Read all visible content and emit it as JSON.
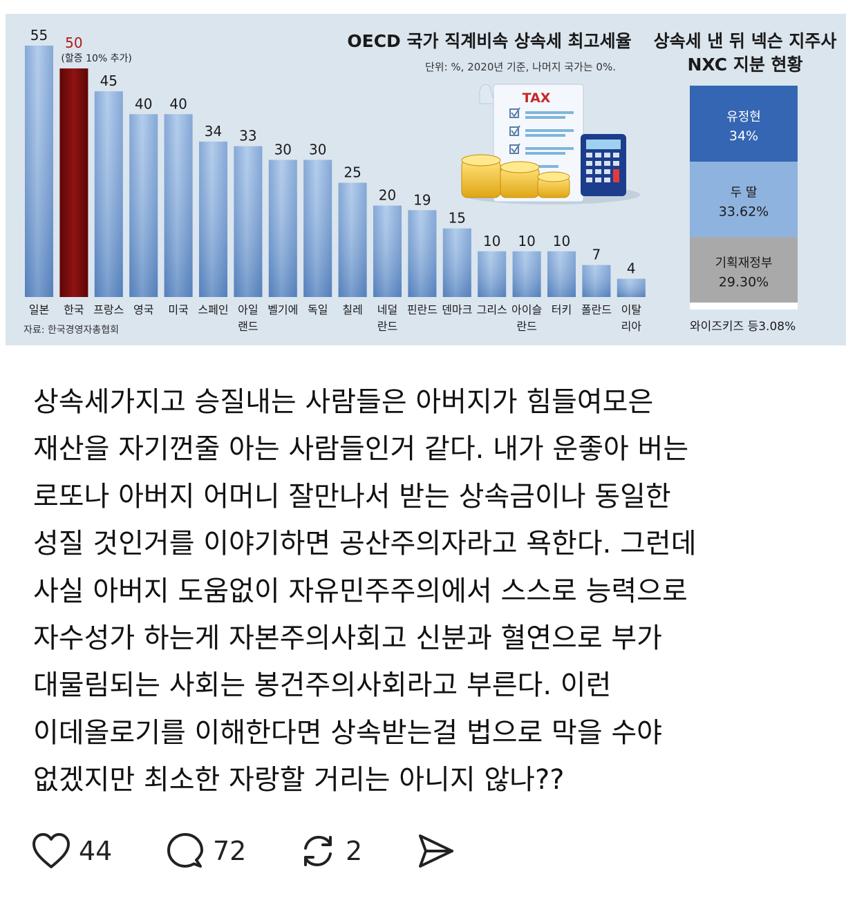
{
  "infographic": {
    "chart_title": "OECD 국가 직계비속 상속세 최고세율",
    "chart_subtitle": "단위: %, 2020년 기준, 나머지 국가는 0%.",
    "korea_note": "(할증 10% 추가)",
    "source": "자료: 한국경영자총협회",
    "tax_label": "TAX",
    "colors": {
      "bar": "#8fb3df",
      "highlight_bar": "#7a0d0d",
      "korea_value": "#b01818",
      "background": "#dbe5ee"
    }
  },
  "chart_data": [
    {
      "type": "bar",
      "title": "OECD 국가 직계비속 상속세 최고세율",
      "subtitle": "단위: %, 2020년 기준, 나머지 국가는 0%.",
      "categories": [
        "일본",
        "한국",
        "프랑스",
        "영국",
        "미국",
        "스페인",
        "아일랜드",
        "벨기에",
        "독일",
        "칠레",
        "네덜란드",
        "핀란드",
        "덴마크",
        "그리스",
        "아이슬란드",
        "터키",
        "폴란드",
        "이탈리아"
      ],
      "category_lines": [
        [
          "일본"
        ],
        [
          "한국"
        ],
        [
          "프랑스"
        ],
        [
          "영국"
        ],
        [
          "미국"
        ],
        [
          "스페인"
        ],
        [
          "아일",
          "랜드"
        ],
        [
          "벨기에"
        ],
        [
          "독일"
        ],
        [
          "칠레"
        ],
        [
          "네덜",
          "란드"
        ],
        [
          "핀란드"
        ],
        [
          "덴마크"
        ],
        [
          "그리스"
        ],
        [
          "아이슬",
          "란드"
        ],
        [
          "터키"
        ],
        [
          "폴란드"
        ],
        [
          "이탈",
          "리아"
        ]
      ],
      "values": [
        55,
        50,
        45,
        40,
        40,
        34,
        33,
        30,
        30,
        25,
        20,
        19,
        15,
        10,
        10,
        10,
        7,
        4
      ],
      "highlight": "한국",
      "ylim": [
        0,
        55
      ]
    },
    {
      "type": "bar",
      "stacked": true,
      "title": "상속세 낸 뒤 넥슨 지주사 NXC 지분 현황",
      "title_lines": [
        "상속세 낸 뒤 넥슨 지주사",
        "NXC 지분 현황"
      ],
      "segments": [
        {
          "name": "유정현",
          "label": "34%",
          "value": 34,
          "color": "#3566b3",
          "text_color": "#ffffff"
        },
        {
          "name": "두 딸",
          "label": "33.62%",
          "value": 33.62,
          "color": "#8fb3df",
          "text_color": "#1a1a1a"
        },
        {
          "name": "기획재정부",
          "label": "29.30%",
          "value": 29.3,
          "color": "#a9a9a9",
          "text_color": "#1a1a1a"
        },
        {
          "name": "와이즈키즈 등",
          "label": "3.08%",
          "value": 3.08,
          "color": "#ffffff",
          "text_color": "#1a1a1a"
        }
      ],
      "bottom_label": "와이즈키즈 등3.08%"
    }
  ],
  "post": {
    "lines": [
      "상속세가지고 승질내는 사람들은 아버지가 힘들여모은",
      "재산을 자기껀줄 아는 사람들인거 같다. 내가 운좋아 버는",
      "로또나 아버지 어머니 잘만나서 받는 상속금이나 동일한",
      "성질 것인거를 이야기하면 공산주의자라고 욕한다. 그런데",
      "사실 아버지 도움없이 자유민주주의에서 스스로 능력으로",
      "자수성가 하는게 자본주의사회고 신분과 혈연으로 부가",
      "대물림되는 사회는 봉건주의사회라고 부른다. 이런",
      "이데올로기를 이해한다면 상속받는걸 법으로 막을 수야",
      "없겠지만 최소한 자랑할 거리는 아니지 않나??"
    ]
  },
  "actions": {
    "like_icon": "heart-icon",
    "like_count": "44",
    "comment_icon": "speech-bubble-icon",
    "comment_count": "72",
    "repost_icon": "repost-icon",
    "repost_count": "2",
    "share_icon": "send-icon"
  }
}
